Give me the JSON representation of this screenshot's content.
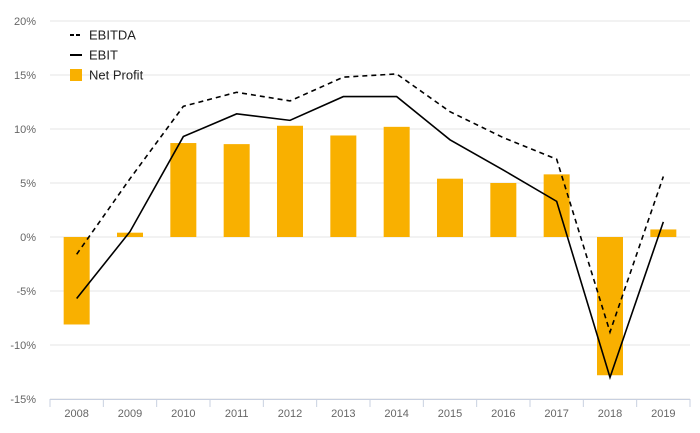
{
  "chart_data": {
    "type": "bar",
    "categories": [
      "2008",
      "2009",
      "2010",
      "2011",
      "2012",
      "2013",
      "2014",
      "2015",
      "2016",
      "2017",
      "2018",
      "2019"
    ],
    "series": [
      {
        "name": "EBITDA",
        "type": "line",
        "style": "dashed",
        "color": "#000000",
        "values": [
          -1.6,
          5.4,
          12.1,
          13.4,
          12.6,
          14.8,
          15.1,
          11.6,
          9.2,
          7.2,
          -8.8,
          5.6
        ]
      },
      {
        "name": "EBIT",
        "type": "line",
        "style": "solid",
        "color": "#000000",
        "values": [
          -5.7,
          0.5,
          9.3,
          11.4,
          10.8,
          13.0,
          13.0,
          9.0,
          6.2,
          3.3,
          -13.0,
          1.4
        ]
      },
      {
        "name": "Net Profit",
        "type": "bar",
        "color": "#F9B000",
        "values": [
          -8.1,
          0.4,
          8.7,
          8.6,
          10.3,
          9.4,
          10.2,
          5.4,
          5.0,
          5.8,
          -12.8,
          0.7
        ]
      }
    ],
    "yticks": [
      "20%",
      "15%",
      "10%",
      "5%",
      "0%",
      "-5%",
      "-10%",
      "-15%"
    ],
    "ylim": [
      -15,
      20
    ],
    "grid": true,
    "legend_position": "top-left"
  }
}
